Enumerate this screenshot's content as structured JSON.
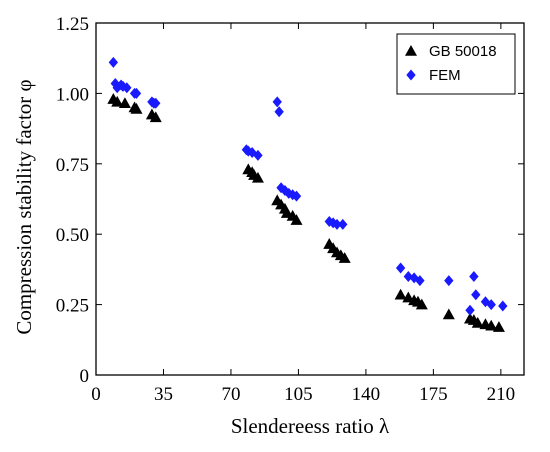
{
  "chart_data": {
    "type": "scatter",
    "xlabel": "Slendereess ratio λ",
    "ylabel": "Compression stability factor φ",
    "xlim": [
      0,
      222
    ],
    "ylim": [
      0,
      1.25
    ],
    "xticks": [
      0,
      35,
      70,
      105,
      140,
      175,
      210
    ],
    "xtick_labels": [
      "0",
      "35",
      "70",
      "105",
      "140",
      "175",
      "210"
    ],
    "yticks": [
      0,
      0.25,
      0.5,
      0.75,
      1.0,
      1.25
    ],
    "ytick_labels": [
      "0",
      "0.25",
      "0.50",
      "0.75",
      "1.00",
      "1.25"
    ],
    "grid": false,
    "legend_position": "top-right",
    "series": [
      {
        "name": "GB 50018",
        "marker": "triangle",
        "color": "#000000",
        "points": [
          [
            9,
            0.98
          ],
          [
            11,
            0.97
          ],
          [
            15,
            0.965
          ],
          [
            20,
            0.95
          ],
          [
            21,
            0.945
          ],
          [
            29,
            0.925
          ],
          [
            31,
            0.915
          ],
          [
            79,
            0.73
          ],
          [
            81,
            0.72
          ],
          [
            82,
            0.71
          ],
          [
            84,
            0.7
          ],
          [
            94,
            0.62
          ],
          [
            96,
            0.605
          ],
          [
            98,
            0.59
          ],
          [
            99,
            0.575
          ],
          [
            102,
            0.565
          ],
          [
            104,
            0.55
          ],
          [
            121,
            0.465
          ],
          [
            123,
            0.45
          ],
          [
            125,
            0.435
          ],
          [
            127,
            0.425
          ],
          [
            129,
            0.415
          ],
          [
            158,
            0.285
          ],
          [
            162,
            0.275
          ],
          [
            165,
            0.265
          ],
          [
            167,
            0.26
          ],
          [
            169,
            0.25
          ],
          [
            183,
            0.215
          ],
          [
            194,
            0.2
          ],
          [
            196,
            0.195
          ],
          [
            198,
            0.185
          ],
          [
            202,
            0.18
          ],
          [
            205,
            0.175
          ],
          [
            209,
            0.17
          ]
        ]
      },
      {
        "name": "FEM",
        "marker": "diamond",
        "color": "#1a1aff",
        "points": [
          [
            9,
            1.11
          ],
          [
            10,
            1.035
          ],
          [
            11,
            1.02
          ],
          [
            13,
            1.03
          ],
          [
            14,
            1.025
          ],
          [
            16,
            1.02
          ],
          [
            20,
            1.0
          ],
          [
            21,
            1.0
          ],
          [
            29,
            0.97
          ],
          [
            30,
            0.965
          ],
          [
            31,
            0.965
          ],
          [
            78,
            0.8
          ],
          [
            79,
            0.795
          ],
          [
            81,
            0.79
          ],
          [
            84,
            0.78
          ],
          [
            94,
            0.97
          ],
          [
            95,
            0.935
          ],
          [
            96,
            0.665
          ],
          [
            98,
            0.655
          ],
          [
            100,
            0.645
          ],
          [
            102,
            0.64
          ],
          [
            104,
            0.635
          ],
          [
            121,
            0.545
          ],
          [
            123,
            0.54
          ],
          [
            125,
            0.535
          ],
          [
            128,
            0.535
          ],
          [
            158,
            0.38
          ],
          [
            162,
            0.35
          ],
          [
            165,
            0.345
          ],
          [
            168,
            0.335
          ],
          [
            183,
            0.335
          ],
          [
            194,
            0.23
          ],
          [
            196,
            0.35
          ],
          [
            197,
            0.285
          ],
          [
            202,
            0.26
          ],
          [
            205,
            0.25
          ],
          [
            211,
            0.245
          ]
        ]
      }
    ]
  }
}
